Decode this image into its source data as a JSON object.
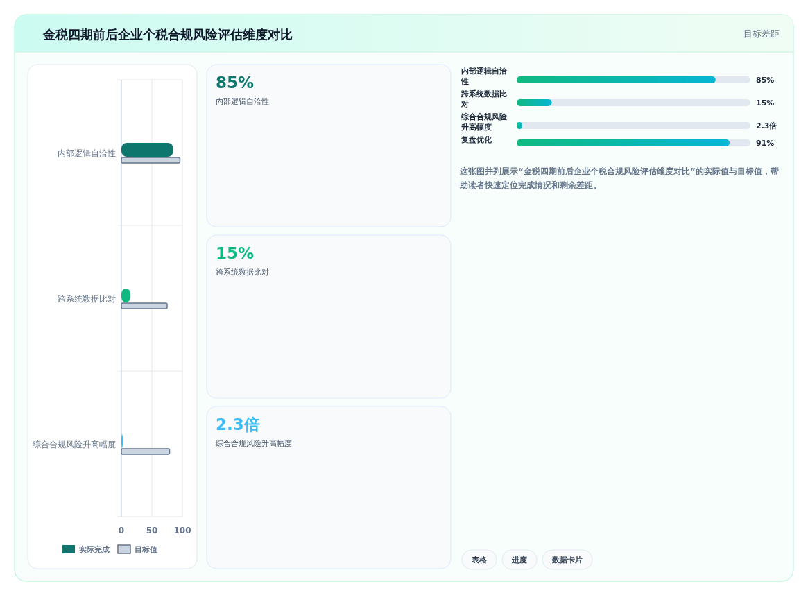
{
  "chart_data": [
    {
      "type": "other",
      "title": "金税四期前后企业个税合规风险评估维度对比",
      "subtitle": "目标差距"
    },
    {
      "type": "bar",
      "orientation": "horizontal",
      "categories": [
        "内部逻辑自洽性",
        "跨系统数据比对",
        "综合合规风险升高幅度"
      ],
      "series": [
        {
          "name": "实际完成",
          "color": "#0f766e",
          "colors": [
            "#0f766e",
            "#10b981",
            "#38bdf8"
          ],
          "values": [
            85,
            15,
            2.3
          ]
        },
        {
          "name": "目标值",
          "color": "#cbd5e1",
          "values": [
            96,
            75,
            79
          ]
        }
      ],
      "xlim": [
        0,
        100
      ],
      "xticks": [
        0,
        50,
        100
      ],
      "grid": true,
      "legend": "bottom"
    },
    {
      "type": "other",
      "annotations": [
        "85%",
        "内部逻辑自洽性",
        "15%",
        "跨系统数据比对",
        "2.3倍",
        "综合合规风险升高幅度"
      ],
      "colors": [
        "#0f766e",
        "#10b981",
        "#38bdf8"
      ]
    },
    {
      "type": "bar",
      "orientation": "horizontal",
      "categories": [
        "内部逻辑自洽性",
        "跨系统数据比对",
        "综合合规风险升高幅度",
        "复盘优化"
      ],
      "values": [
        85,
        15,
        2.3,
        91
      ],
      "value_labels": [
        "85%",
        "15%",
        "2.3倍",
        "91%"
      ],
      "color": "#10b981",
      "annotations": [
        "这张图并列展示“金税四期前后企业个税合规风险评估维度对比”的实际值与目标值，帮助读者快速定位完成情况和剩余差距。"
      ]
    },
    {
      "type": "other",
      "annotations": [
        "表格",
        "进度",
        "数据卡片"
      ]
    }
  ]
}
